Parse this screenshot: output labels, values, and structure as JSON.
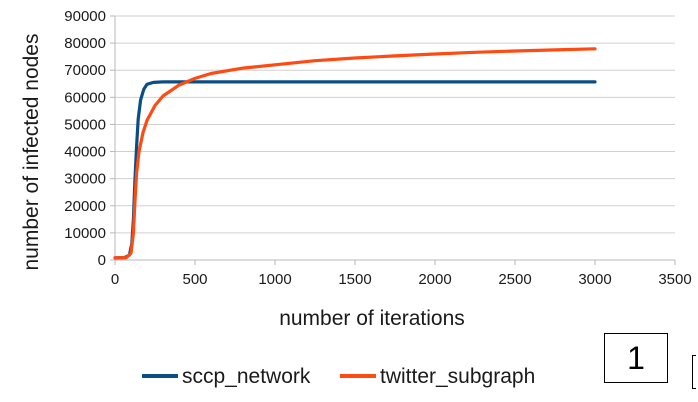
{
  "chart_data": {
    "type": "line",
    "title": "",
    "xlabel": "number of iterations",
    "ylabel": "number of infected nodes",
    "xlim": [
      0,
      3500
    ],
    "ylim": [
      0,
      90000
    ],
    "xticks": [
      0,
      500,
      1000,
      1500,
      2000,
      2500,
      3000,
      3500
    ],
    "yticks": [
      0,
      10000,
      20000,
      30000,
      40000,
      50000,
      60000,
      70000,
      80000,
      90000
    ],
    "grid": "horizontal",
    "legend_position": "bottom",
    "series": [
      {
        "name": "sccp_network",
        "color": "#0b4e86",
        "points": [
          [
            0,
            800
          ],
          [
            60,
            900
          ],
          [
            90,
            1800
          ],
          [
            105,
            6000
          ],
          [
            115,
            15000
          ],
          [
            125,
            30000
          ],
          [
            135,
            42000
          ],
          [
            145,
            52000
          ],
          [
            160,
            59000
          ],
          [
            180,
            63000
          ],
          [
            200,
            64800
          ],
          [
            240,
            65500
          ],
          [
            300,
            65700
          ],
          [
            500,
            65700
          ],
          [
            1000,
            65700
          ],
          [
            2000,
            65700
          ],
          [
            3000,
            65700
          ]
        ]
      },
      {
        "name": "twitter_subgraph",
        "color": "#ff4b12",
        "points": [
          [
            0,
            800
          ],
          [
            70,
            900
          ],
          [
            100,
            2500
          ],
          [
            115,
            10000
          ],
          [
            125,
            22000
          ],
          [
            135,
            32000
          ],
          [
            150,
            40000
          ],
          [
            175,
            47000
          ],
          [
            200,
            51500
          ],
          [
            250,
            57000
          ],
          [
            300,
            60500
          ],
          [
            400,
            64500
          ],
          [
            500,
            67000
          ],
          [
            600,
            68800
          ],
          [
            800,
            70800
          ],
          [
            1000,
            72000
          ],
          [
            1250,
            73500
          ],
          [
            1500,
            74500
          ],
          [
            1750,
            75300
          ],
          [
            2000,
            76000
          ],
          [
            2250,
            76600
          ],
          [
            2500,
            77100
          ],
          [
            2750,
            77500
          ],
          [
            3000,
            77900
          ]
        ]
      }
    ]
  },
  "badge": {
    "label": "1"
  }
}
